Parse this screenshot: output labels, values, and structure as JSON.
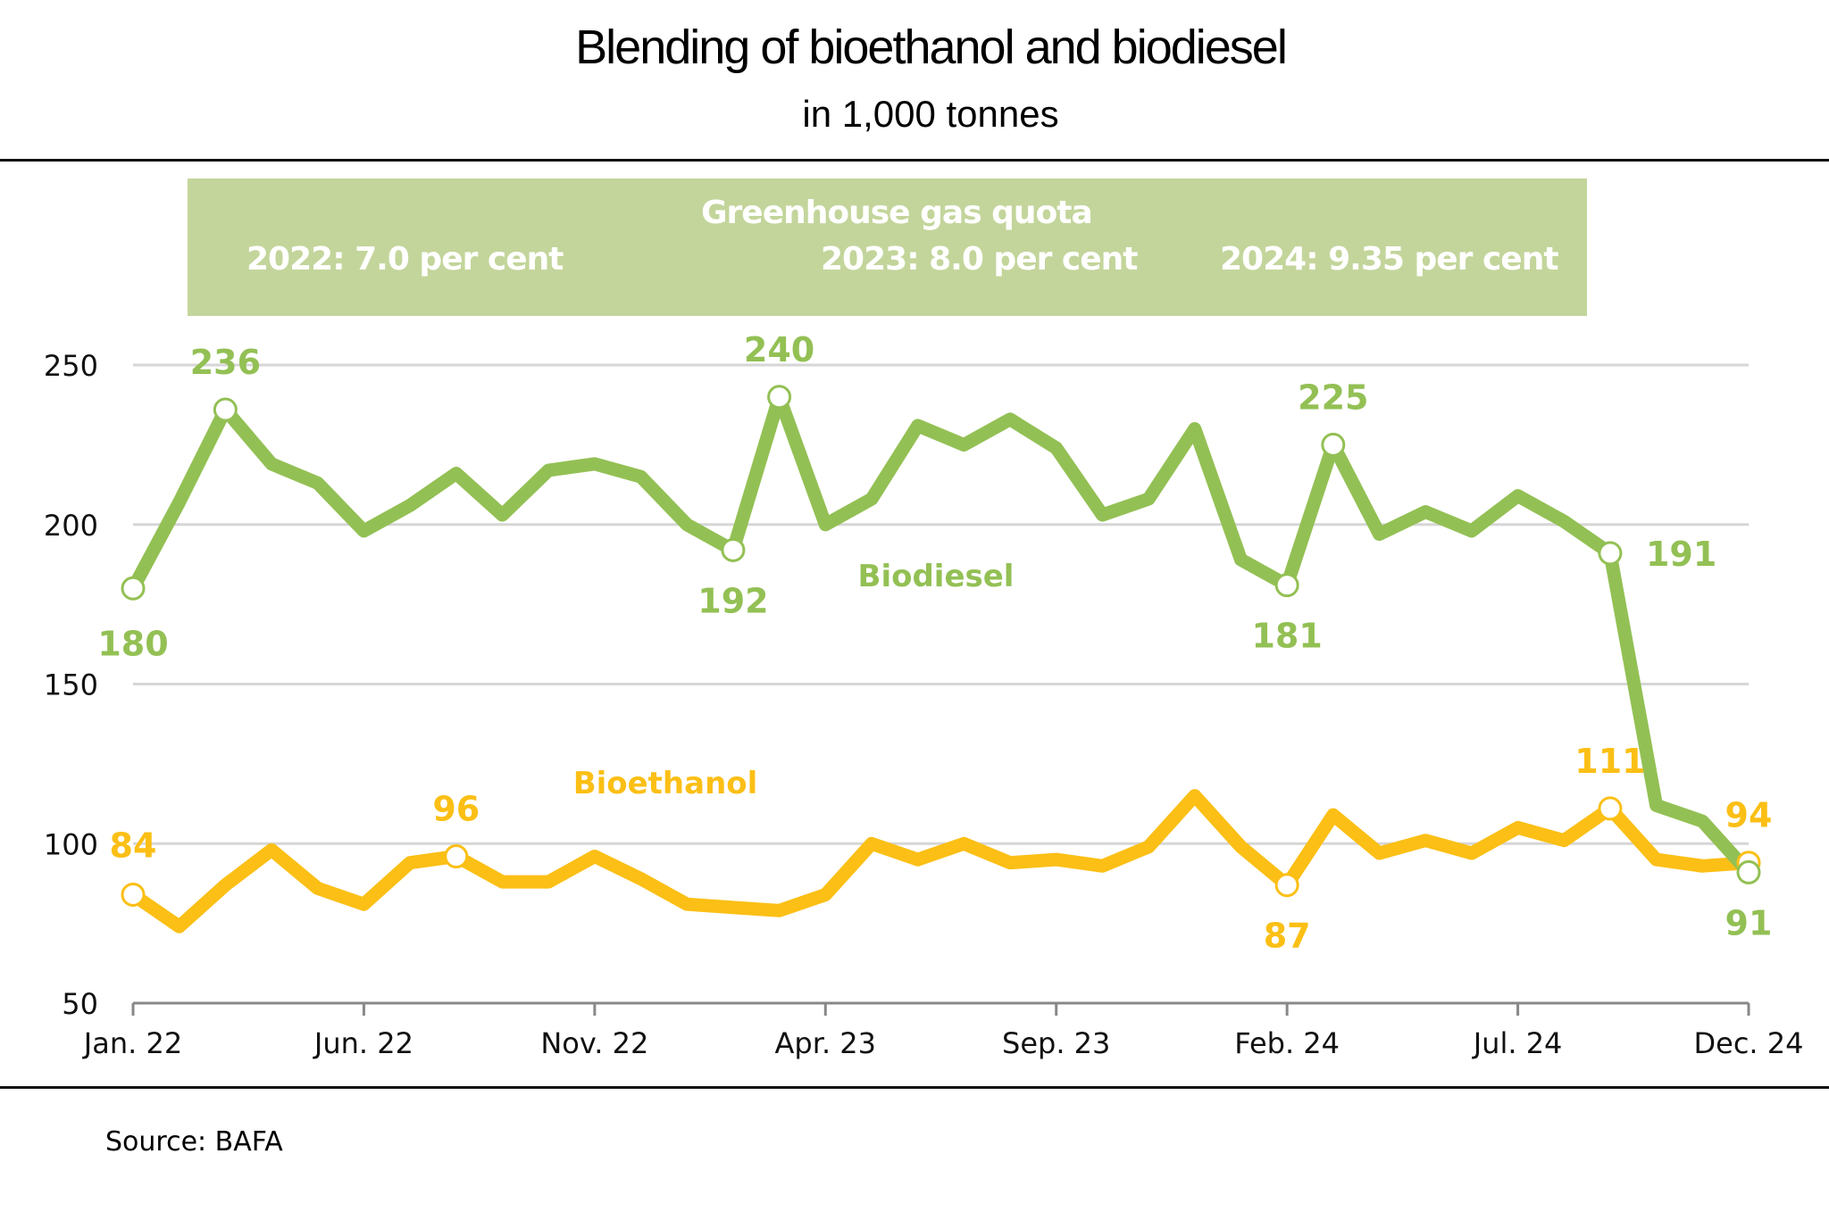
{
  "header": {
    "title": "Blending of bioethanol and biodiesel",
    "subtitle": "in 1,000 tonnes"
  },
  "banner": {
    "heading": "Greenhouse gas quota",
    "quota_2022": "2022: 7.0 per cent",
    "quota_2023": "2023: 8.0 per cent",
    "quota_2024": "2024: 9.35 per cent",
    "color": "#c3d59b"
  },
  "footer": {
    "source": "Source: BAFA"
  },
  "chart_data": {
    "type": "line",
    "title": "Blending of bioethanol and biodiesel",
    "subtitle": "in 1,000 tonnes",
    "xlabel": "",
    "ylabel": "",
    "ylim": [
      50,
      250
    ],
    "yticks": [
      50,
      100,
      150,
      200,
      250
    ],
    "grid": true,
    "x": [
      "Jan. 22",
      "Feb. 22",
      "Mar. 22",
      "Apr. 22",
      "May 22",
      "Jun. 22",
      "Jul. 22",
      "Aug. 22",
      "Sep. 22",
      "Oct. 22",
      "Nov. 22",
      "Dec. 22",
      "Jan. 23",
      "Feb. 23",
      "Mar. 23",
      "Apr. 23",
      "May 23",
      "Jun. 23",
      "Jul. 23",
      "Aug. 23",
      "Sep. 23",
      "Oct. 23",
      "Nov. 23",
      "Dec. 23",
      "Jan. 24",
      "Feb. 24",
      "Mar. 24",
      "Apr. 24",
      "May 24",
      "Jun. 24",
      "Jul. 24",
      "Aug. 24",
      "Sep. 24",
      "Oct. 24",
      "Nov. 24",
      "Dec. 24"
    ],
    "xticks": [
      {
        "index": 0,
        "label": "Jan. 22"
      },
      {
        "index": 5,
        "label": "Jun. 22"
      },
      {
        "index": 10,
        "label": "Nov. 22"
      },
      {
        "index": 15,
        "label": "Apr. 23"
      },
      {
        "index": 20,
        "label": "Sep. 23"
      },
      {
        "index": 25,
        "label": "Feb. 24"
      },
      {
        "index": 30,
        "label": "Jul. 24"
      },
      {
        "index": 35,
        "label": "Dec. 24"
      }
    ],
    "series": [
      {
        "name": "Biodiesel",
        "color": "#93c054",
        "values": [
          180,
          207,
          236,
          219,
          213,
          198,
          206,
          216,
          203,
          217,
          219,
          215,
          200,
          192,
          240,
          200,
          208,
          231,
          225,
          233,
          224,
          203,
          208,
          230,
          189,
          181,
          225,
          197,
          204,
          198,
          209,
          201,
          191,
          112,
          107,
          91
        ],
        "annotations": [
          {
            "index": 0,
            "label": "180",
            "pos": "below"
          },
          {
            "index": 2,
            "label": "236",
            "pos": "above"
          },
          {
            "index": 13,
            "label": "192",
            "pos": "below"
          },
          {
            "index": 14,
            "label": "240",
            "pos": "above"
          },
          {
            "index": 25,
            "label": "181",
            "pos": "below"
          },
          {
            "index": 26,
            "label": "225",
            "pos": "above"
          },
          {
            "index": 32,
            "label": "191",
            "pos": "right"
          },
          {
            "index": 35,
            "label": "91",
            "pos": "below"
          }
        ]
      },
      {
        "name": "Bioethanol",
        "color": "#fbbf15",
        "values": [
          84,
          74,
          87,
          98,
          86,
          81,
          94,
          96,
          88,
          88,
          96,
          89,
          81,
          80,
          79,
          84,
          100,
          95,
          100,
          94,
          95,
          93,
          99,
          115,
          99,
          87,
          109,
          97,
          101,
          97,
          105,
          101,
          111,
          95,
          93,
          94
        ],
        "annotations": [
          {
            "index": 0,
            "label": "84",
            "pos": "above"
          },
          {
            "index": 7,
            "label": "96",
            "pos": "above"
          },
          {
            "index": 25,
            "label": "87",
            "pos": "below"
          },
          {
            "index": 32,
            "label": "111",
            "pos": "above"
          },
          {
            "index": 35,
            "label": "94",
            "pos": "above"
          }
        ]
      }
    ],
    "legend": "inline labels",
    "series_labels": [
      {
        "series": "Biodiesel",
        "text": "Biodiesel",
        "position": "mid-center below line"
      },
      {
        "series": "Bioethanol",
        "text": "Bioethanol",
        "position": "left-center above line"
      }
    ]
  }
}
